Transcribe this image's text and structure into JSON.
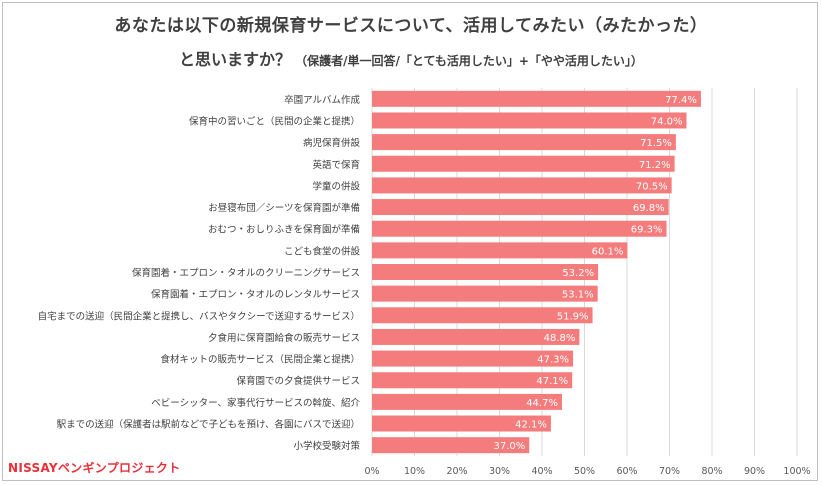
{
  "chart_data": {
    "type": "bar",
    "orientation": "horizontal",
    "title_line1": "あなたは以下の新規保育サービスについて、活用してみたい（みたかった）",
    "title_line2": "と思いますか？",
    "subtitle": "（保護者/単一回答/「とても活用したい」+「やや活用したい」）",
    "categories": [
      "卒園アルバム作成",
      "保育中の習いごと（民間の企業と提携）",
      "病児保育併設",
      "英語で保育",
      "学童の併設",
      "お昼寝布団／シーツを保育園が準備",
      "おむつ・おしりふきを保育園が準備",
      "こども食堂の併設",
      "保育園着・エプロン・タオルのクリーニングサービス",
      "保育園着・エプロン・タオルのレンタルサービス",
      "自宅までの送迎（民間企業と提携し、バスやタクシーで送迎するサービス）",
      "夕食用に保育園給食の販売サービス",
      "食材キットの販売サービス（民間企業と提携）",
      "保育園での夕食提供サービス",
      "ベビーシッター、家事代行サービスの斡旋、紹介",
      "駅までの送迎（保護者は駅前などで子どもを預け、各園にバスで送迎）",
      "小学校受験対策"
    ],
    "values": [
      77.4,
      74.0,
      71.5,
      71.2,
      70.5,
      69.8,
      69.3,
      60.1,
      53.2,
      53.1,
      51.9,
      48.8,
      47.3,
      47.1,
      44.7,
      42.1,
      37.0
    ],
    "data_labels": [
      "77.4%",
      "74.0%",
      "71.5%",
      "71.2%",
      "70.5%",
      "69.8%",
      "69.3%",
      "60.1%",
      "53.2%",
      "53.1%",
      "51.9%",
      "48.8%",
      "47.3%",
      "47.1%",
      "44.7%",
      "42.1%",
      "37.0%"
    ],
    "xlim": [
      0,
      100
    ],
    "xticks": [
      "0%",
      "10%",
      "20%",
      "30%",
      "40%",
      "50%",
      "60%",
      "70%",
      "80%",
      "90%",
      "100%"
    ],
    "grid": true,
    "bar_color": "#f47c7c",
    "grid_color": "#d9d9d9"
  },
  "logo": {
    "text": "NISSAYペンギンプロジェクト",
    "color": "#e8303a"
  }
}
